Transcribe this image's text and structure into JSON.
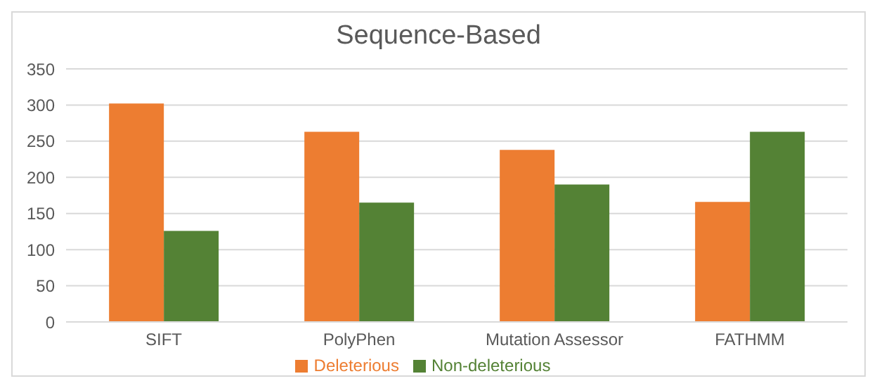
{
  "chart_data": {
    "type": "bar",
    "title": "Sequence-Based",
    "categories": [
      "SIFT",
      "PolyPhen",
      "Mutation Assessor",
      "FATHMM"
    ],
    "series": [
      {
        "name": "Deleterious",
        "color": "#ed7d31",
        "values": [
          302,
          263,
          238,
          166
        ]
      },
      {
        "name": "Non-deleterious",
        "color": "#548235",
        "values": [
          126,
          165,
          190,
          263
        ]
      }
    ],
    "ylim": [
      0,
      350
    ],
    "yticks": [
      0,
      50,
      100,
      150,
      200,
      250,
      300,
      350
    ],
    "grid": "y",
    "legend": "bottom"
  }
}
